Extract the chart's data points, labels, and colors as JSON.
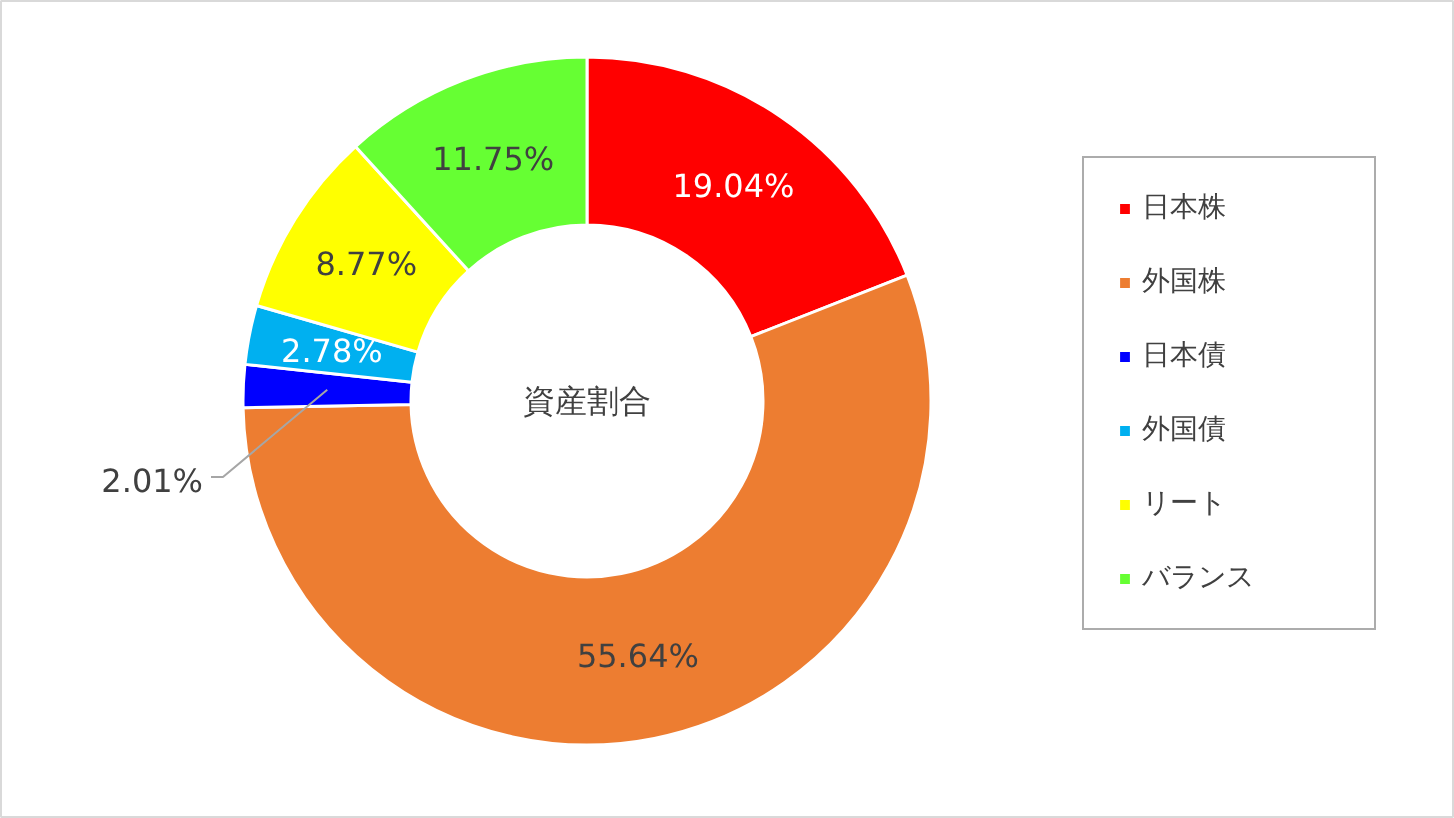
{
  "chart_data": {
    "type": "donut",
    "categories": [
      "日本株",
      "外国株",
      "日本債",
      "外国債",
      "リート",
      "バランス"
    ],
    "values": [
      19.04,
      55.64,
      2.01,
      2.78,
      8.77,
      11.75
    ],
    "colors": [
      "#ff0000",
      "#ed7d31",
      "#0000ff",
      "#00b0f0",
      "#ffff00",
      "#66ff33"
    ],
    "value_labels": [
      "19.04%",
      "55.64%",
      "2.01%",
      "2.78%",
      "8.77%",
      "11.75%"
    ],
    "legend": "right",
    "annotations": [
      "資産割合"
    ]
  }
}
